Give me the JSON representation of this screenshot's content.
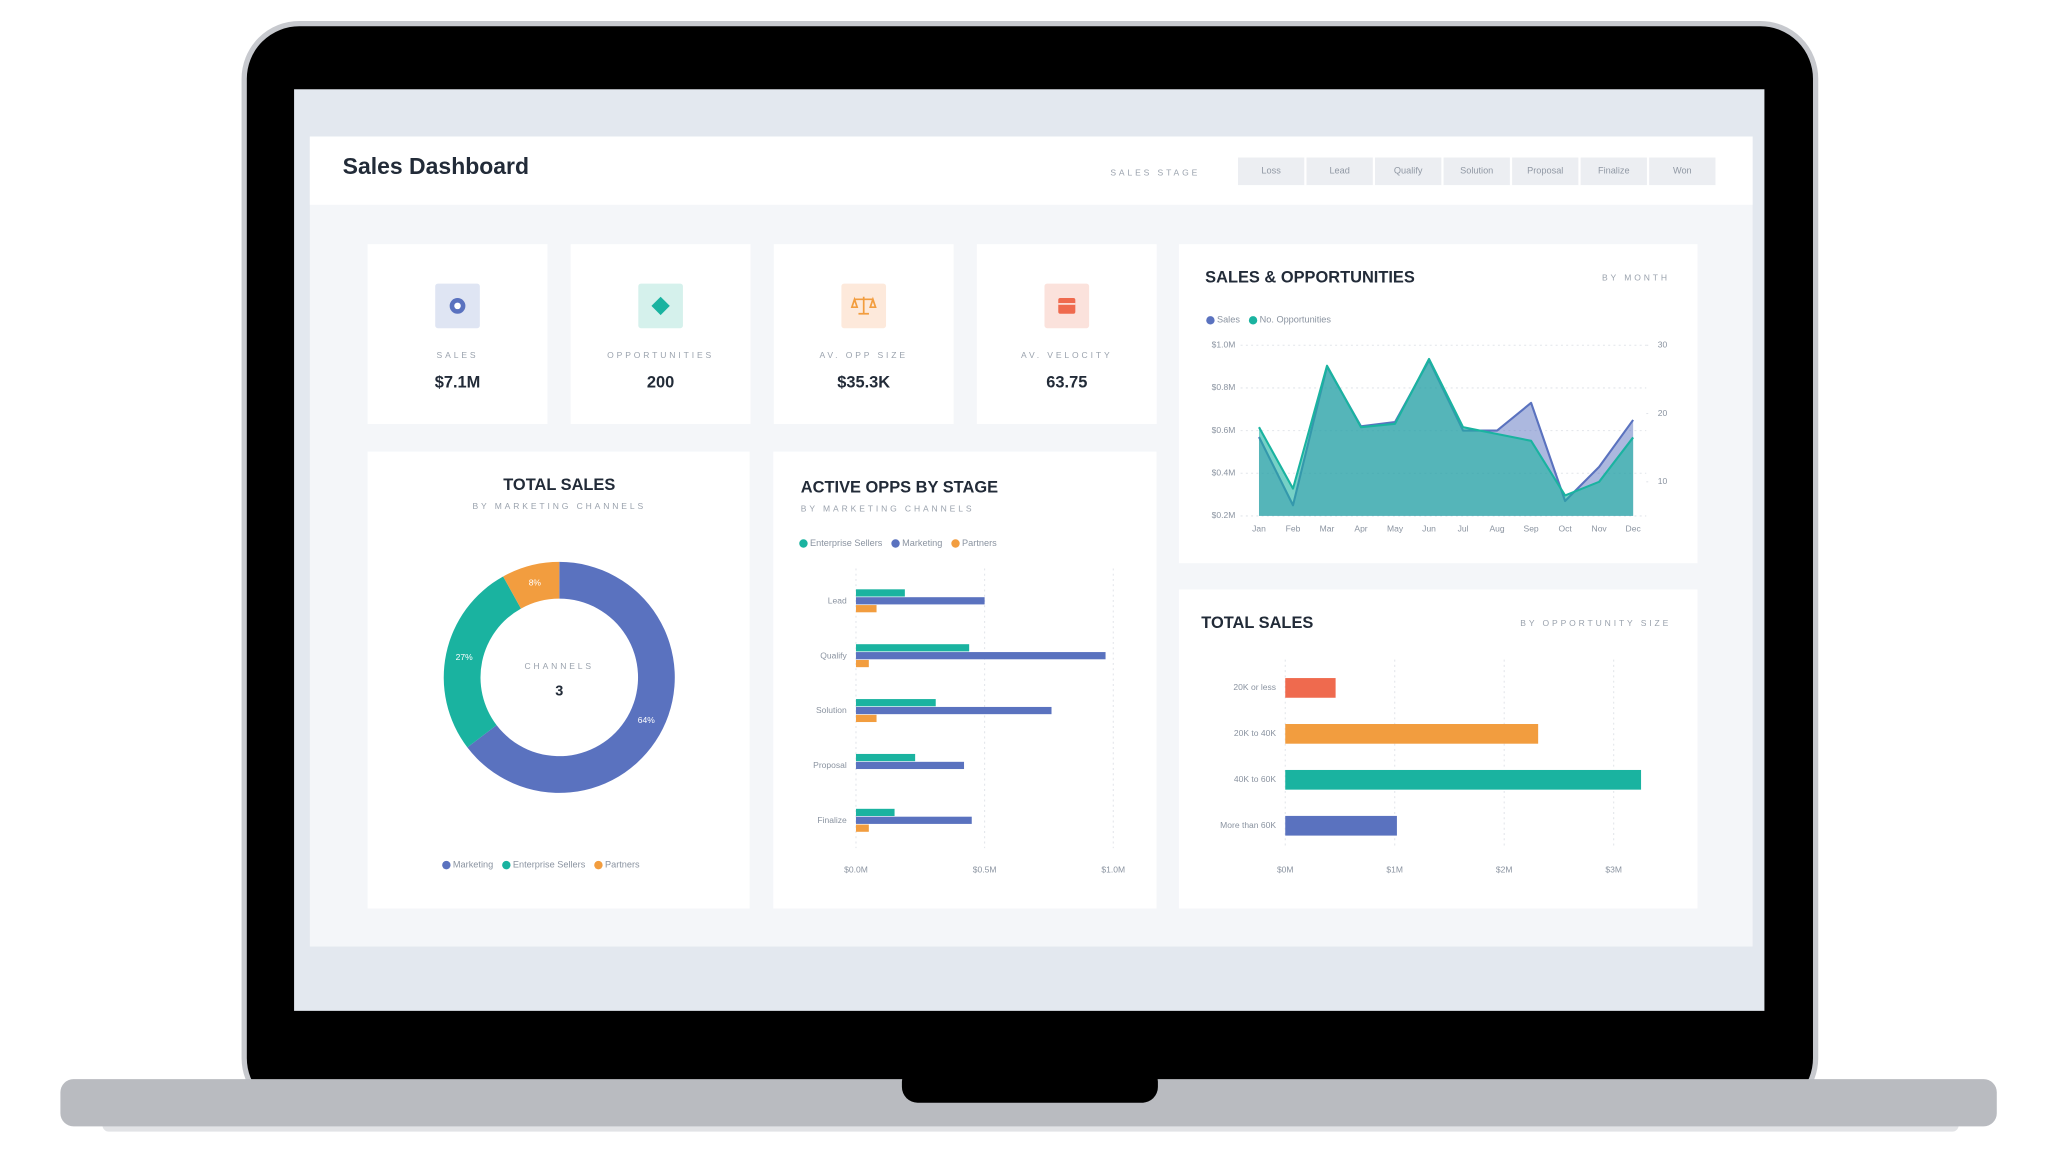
{
  "header": {
    "title": "Sales Dashboard",
    "filter_label": "SALES STAGE",
    "filters": [
      "Loss",
      "Lead",
      "Qualify",
      "Solution",
      "Proposal",
      "Finalize",
      "Won"
    ]
  },
  "kpis": [
    {
      "label": "SALES",
      "value": "$7.1M"
    },
    {
      "label": "OPPORTUNITIES",
      "value": "200"
    },
    {
      "label": "AV. OPP SIZE",
      "value": "$35.3K"
    },
    {
      "label": "AV. VELOCITY",
      "value": "63.75"
    }
  ],
  "chart_data": [
    {
      "type": "line",
      "title": "SALES & OPPORTUNITIES",
      "subtitle": "BY MONTH",
      "area": true,
      "grid": true,
      "categories": [
        "Jan",
        "Feb",
        "Mar",
        "Apr",
        "May",
        "Jun",
        "Jul",
        "Aug",
        "Sep",
        "Oct",
        "Nov",
        "Dec"
      ],
      "series": [
        {
          "name": "Sales",
          "color": "#5a72bf",
          "values": [
            0.57,
            0.25,
            0.9,
            0.62,
            0.64,
            0.93,
            0.6,
            0.6,
            0.73,
            0.27,
            0.43,
            0.65
          ]
        },
        {
          "name": "No. Opportunities",
          "color": "#1ab3a0",
          "axis": "y2",
          "values": [
            18,
            9,
            27,
            18,
            18.5,
            28,
            18,
            17,
            16,
            8,
            10,
            16.5
          ]
        }
      ],
      "ylim": [
        0.2,
        1.0
      ],
      "yticks": [
        {
          "value": 0.2,
          "label": "$0.2M"
        },
        {
          "value": 0.4,
          "label": "$0.4M"
        },
        {
          "value": 0.6,
          "label": "$0.6M"
        },
        {
          "value": 0.8,
          "label": "$0.8M"
        },
        {
          "value": 1.0,
          "label": "$1.0M"
        }
      ],
      "y2lim": [
        5,
        30
      ],
      "y2ticks": [
        10,
        20,
        30
      ]
    },
    {
      "type": "pie",
      "donut": true,
      "title": "TOTAL SALES",
      "subtitle": "BY MARKETING CHANNELS",
      "center_label": "CHANNELS",
      "center_value": "3",
      "categories": [
        "Marketing",
        "Enterprise Sellers",
        "Partners"
      ],
      "values": [
        64,
        27,
        8
      ],
      "value_labels": [
        "64%",
        "27%",
        "8%"
      ],
      "colors": [
        "#5a72bf",
        "#1ab3a0",
        "#f29d3f"
      ]
    },
    {
      "type": "bar",
      "orientation": "horizontal",
      "grid": true,
      "title": "ACTIVE OPPS BY STAGE",
      "subtitle": "BY MARKETING CHANNELS",
      "categories": [
        "Lead",
        "Qualify",
        "Solution",
        "Proposal",
        "Finalize"
      ],
      "series": [
        {
          "name": "Enterprise Sellers",
          "color": "#1ab3a0",
          "values": [
            0.19,
            0.44,
            0.31,
            0.23,
            0.15
          ]
        },
        {
          "name": "Marketing",
          "color": "#5a72bf",
          "values": [
            0.5,
            0.97,
            0.76,
            0.42,
            0.45
          ]
        },
        {
          "name": "Partners",
          "color": "#f29d3f",
          "values": [
            0.08,
            0.05,
            0.08,
            0,
            0.05
          ]
        }
      ],
      "xlim": [
        0,
        1.0
      ],
      "xticks": [
        {
          "value": 0,
          "label": "$0.0M"
        },
        {
          "value": 0.5,
          "label": "$0.5M"
        },
        {
          "value": 1.0,
          "label": "$1.0M"
        }
      ]
    },
    {
      "type": "bar",
      "orientation": "horizontal",
      "grid": true,
      "title": "TOTAL SALES",
      "subtitle": "BY OPPORTUNITY SIZE",
      "categories": [
        "20K or less",
        "20K to 40K",
        "40K to 60K",
        "More than 60K"
      ],
      "values": [
        0.46,
        2.31,
        3.25,
        1.02
      ],
      "colors": [
        "#ef6a4e",
        "#f29d3f",
        "#1ab3a0",
        "#5a72bf"
      ],
      "xlim": [
        0,
        3.3
      ],
      "xticks": [
        {
          "value": 0,
          "label": "$0M"
        },
        {
          "value": 1,
          "label": "$1M"
        },
        {
          "value": 2,
          "label": "$2M"
        },
        {
          "value": 3,
          "label": "$3M"
        }
      ]
    }
  ]
}
